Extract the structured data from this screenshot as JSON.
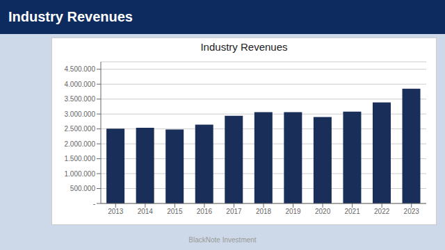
{
  "chart_data": {
    "type": "bar",
    "title": "Industry Revenues",
    "annotations": [
      "BlackNote Investment"
    ],
    "categories": [
      "2013",
      "2014",
      "2015",
      "2016",
      "2017",
      "2018",
      "2019",
      "2020",
      "2021",
      "2022",
      "2023"
    ],
    "values": [
      2510000,
      2540000,
      2480000,
      2640000,
      2940000,
      3060000,
      3060000,
      2900000,
      3080000,
      3390000,
      3850000
    ],
    "color": "#1a2e5a",
    "ylim": [
      0,
      4750000
    ],
    "yticks": [
      {
        "value": 0,
        "label": "-"
      },
      {
        "value": 500000,
        "label": "500.000"
      },
      {
        "value": 1000000,
        "label": "1.000.000"
      },
      {
        "value": 1500000,
        "label": "1.500.000"
      },
      {
        "value": 2000000,
        "label": "2.000.000"
      },
      {
        "value": 2500000,
        "label": "2.500.000"
      },
      {
        "value": 3000000,
        "label": "3.000.000"
      },
      {
        "value": 3500000,
        "label": "3.500.000"
      },
      {
        "value": 4000000,
        "label": "4.000.000"
      },
      {
        "value": 4500000,
        "label": "4.500.000"
      }
    ],
    "grid": true
  }
}
